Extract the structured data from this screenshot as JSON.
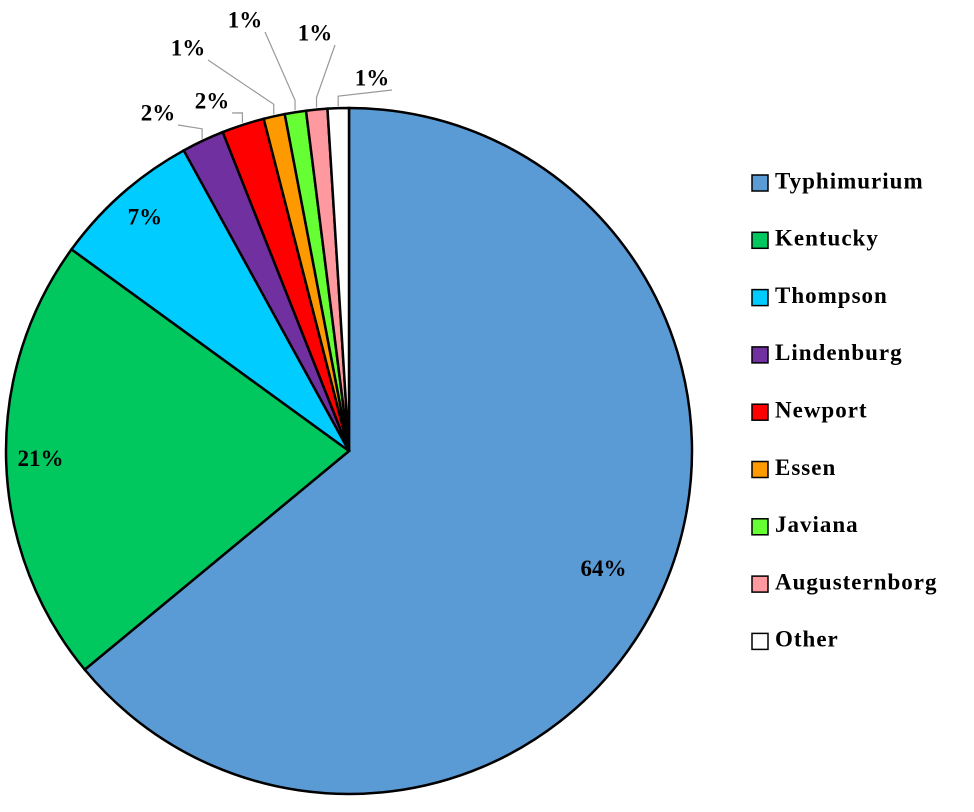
{
  "chart_data": {
    "type": "pie",
    "categories": [
      "Typhimurium",
      "Kentucky",
      "Thompson",
      "Lindenburg",
      "Newport",
      "Essen",
      "Javiana",
      "Augusternborg",
      "Other"
    ],
    "values": [
      64,
      21,
      7,
      2,
      2,
      1,
      1,
      1,
      1
    ],
    "value_labels": [
      "64%",
      "21%",
      "7%",
      "2%",
      "2%",
      "1%",
      "1%",
      "1%",
      "1%"
    ],
    "colors": [
      "#5b9bd5",
      "#00c85f",
      "#00ccff",
      "#7030a0",
      "#ff0000",
      "#ff9900",
      "#66ff33",
      "#ff99a0",
      "#ffffff"
    ],
    "legend": "right"
  }
}
